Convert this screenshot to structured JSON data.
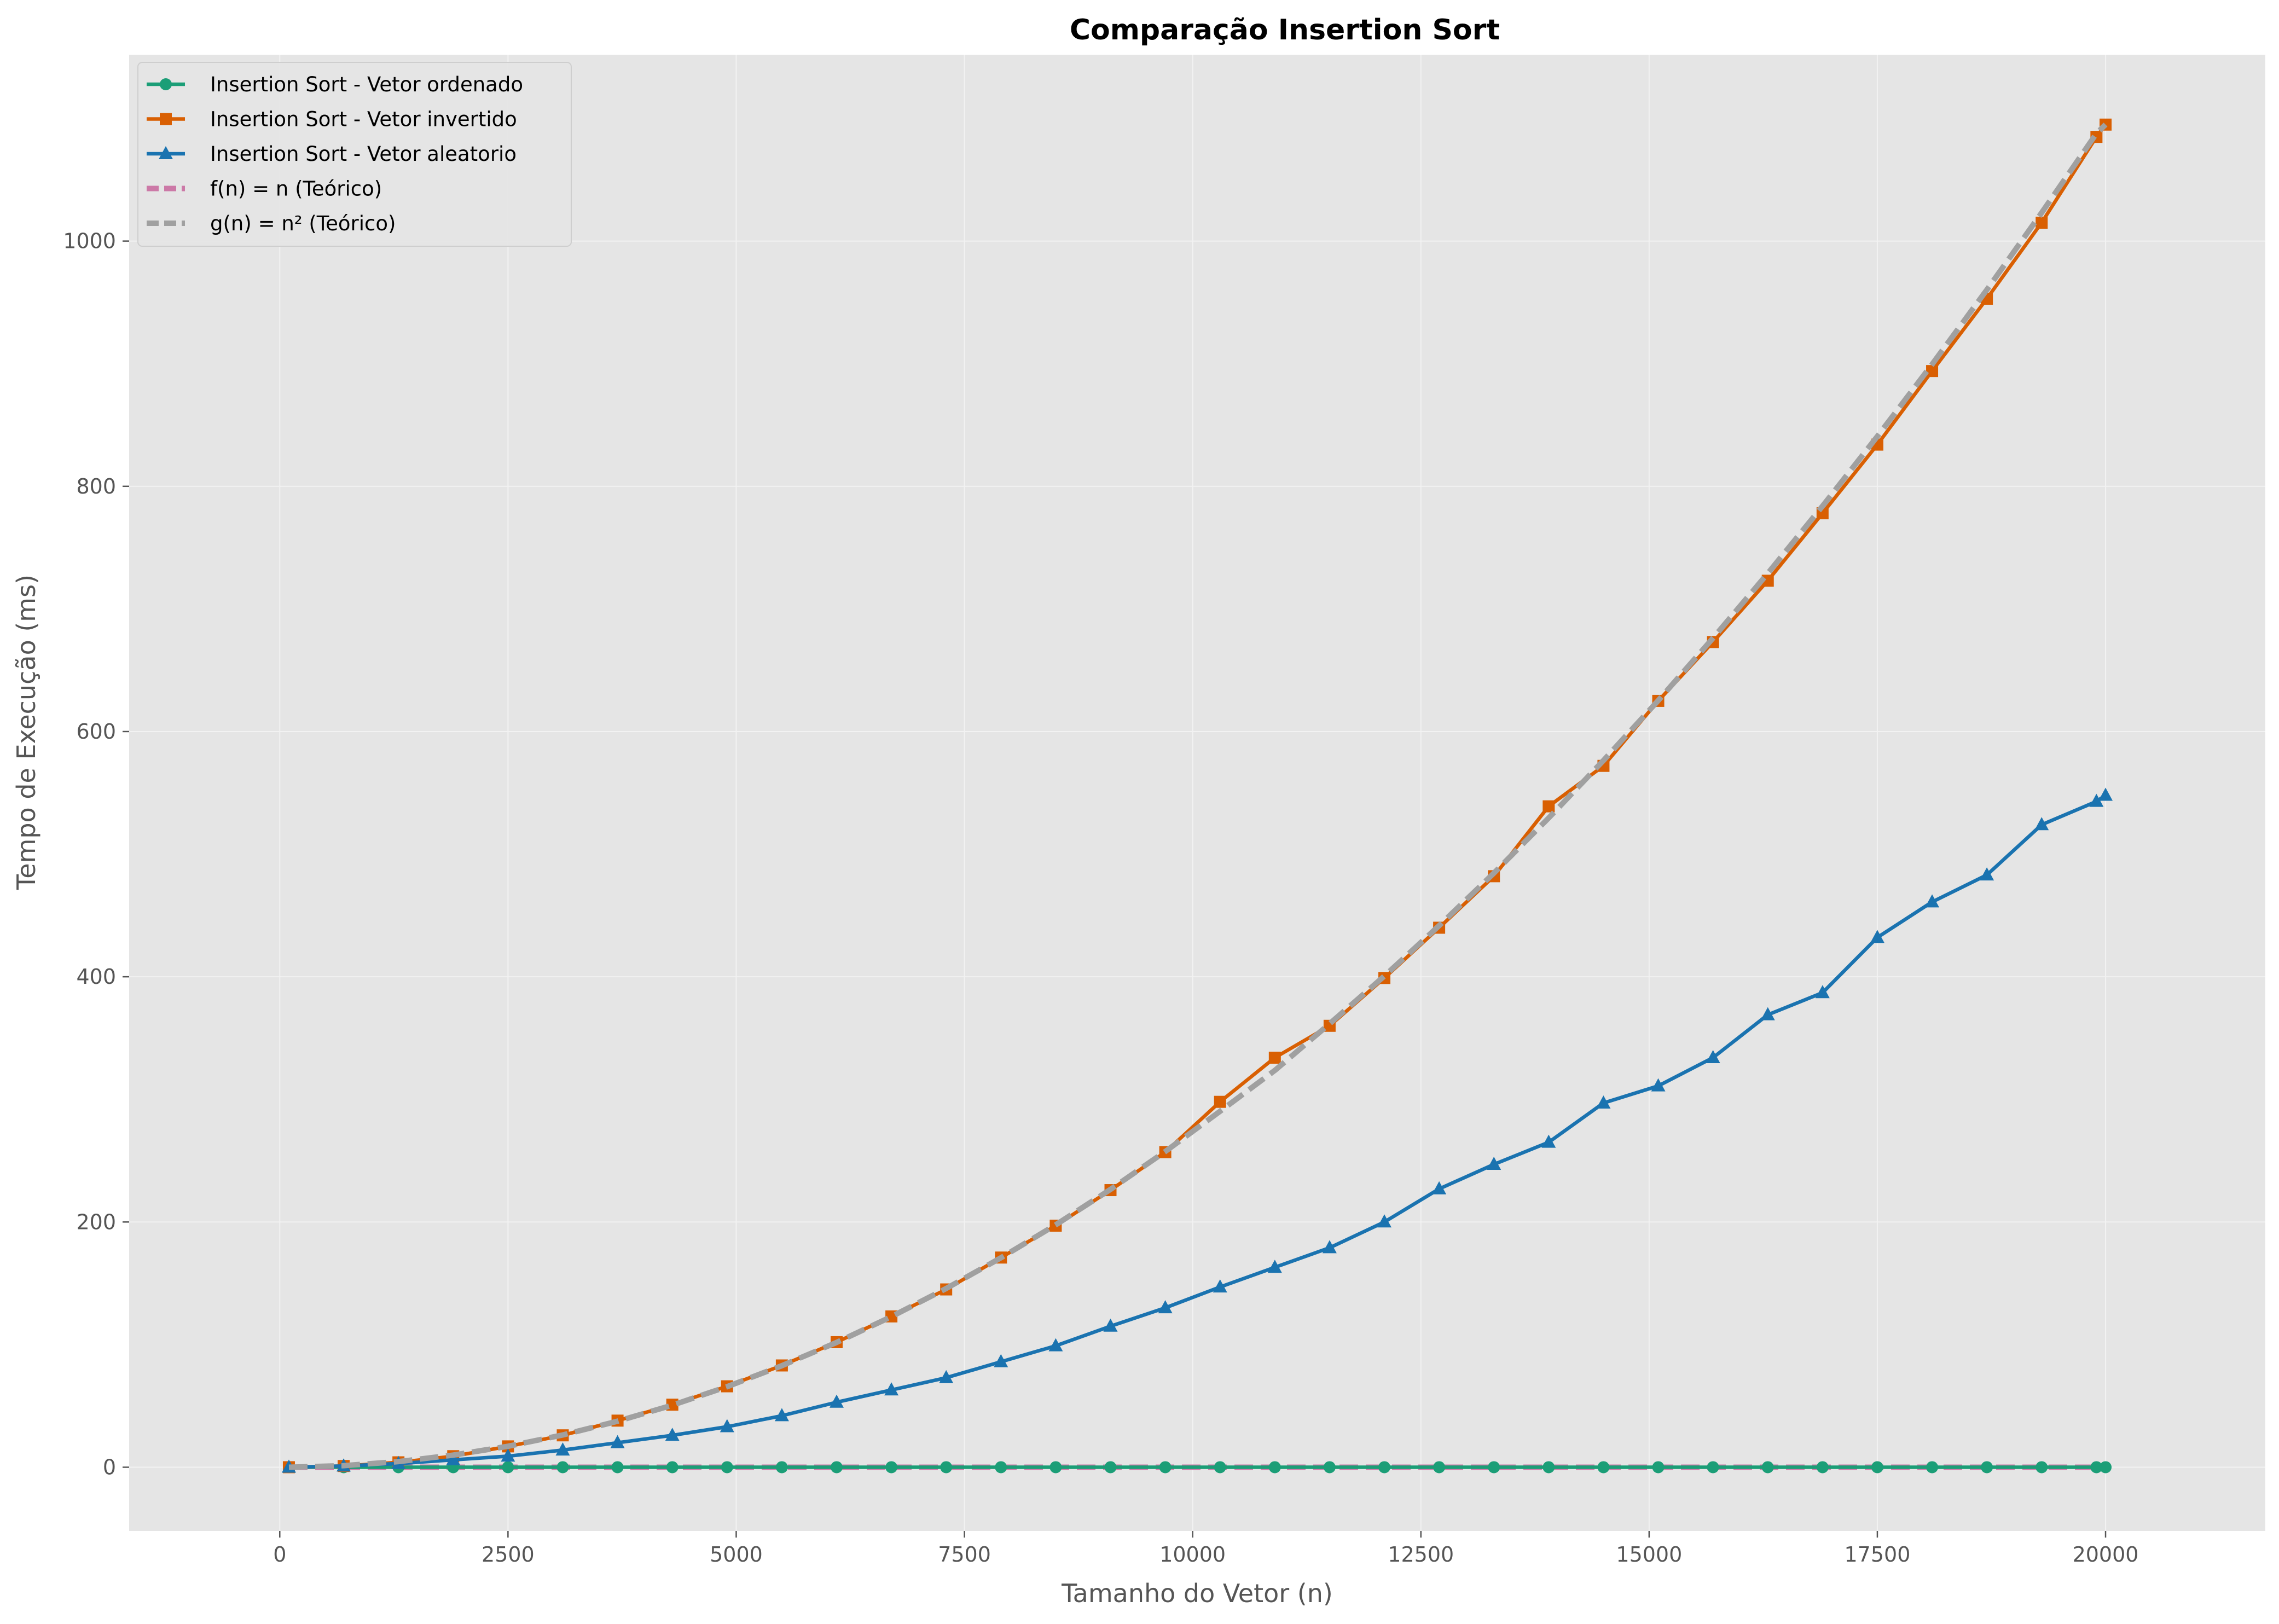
{
  "chart_data": {
    "type": "line",
    "title": "Comparação Insertion Sort",
    "xlabel": "Tamanho do Vetor (n)",
    "ylabel": "Tempo de Execução (ms)",
    "xlim": [
      -1650,
      21750
    ],
    "ylim": [
      -52,
      1152
    ],
    "xticks": [
      0,
      2500,
      5000,
      7500,
      10000,
      12500,
      15000,
      17500,
      20000
    ],
    "yticks": [
      0,
      200,
      400,
      600,
      800,
      1000
    ],
    "grid": true,
    "legend_position": "top-left",
    "x": [
      100,
      700,
      1300,
      1900,
      2500,
      3100,
      3700,
      4300,
      4900,
      5500,
      6100,
      6700,
      7300,
      7900,
      8500,
      9100,
      9700,
      10300,
      10900,
      11500,
      12100,
      12700,
      13300,
      13900,
      14500,
      15100,
      15700,
      16300,
      16900,
      17500,
      18100,
      18700,
      19300,
      19900,
      20000
    ],
    "series": [
      {
        "name": "Insertion Sort - Vetor ordenado",
        "color": "#1b9e77",
        "marker": "circle",
        "dashed": false,
        "values": [
          0,
          0,
          0,
          0,
          0,
          0,
          0,
          0,
          0,
          0,
          0,
          0,
          0,
          0,
          0,
          0,
          0,
          0,
          0,
          0,
          0,
          0,
          0,
          0,
          0,
          0,
          0,
          0,
          0,
          0,
          0,
          0,
          0,
          0,
          0
        ]
      },
      {
        "name": "Insertion Sort - Vetor invertido",
        "color": "#d95f02",
        "marker": "square",
        "dashed": false,
        "values": [
          0,
          1,
          4,
          9,
          17,
          26,
          38,
          51,
          66,
          83,
          102,
          123,
          145,
          171,
          197,
          226,
          257,
          298,
          334,
          360,
          399,
          440,
          482,
          539,
          572,
          625,
          673,
          723,
          778,
          834,
          894,
          953,
          1015,
          1085,
          1095
        ]
      },
      {
        "name": "Insertion Sort - Vetor aleatorio",
        "color": "#1a73b0",
        "marker": "triangle",
        "dashed": false,
        "values": [
          0,
          1,
          3,
          6,
          9,
          14,
          20,
          26,
          33,
          42,
          53,
          63,
          73,
          86,
          99,
          115,
          130,
          147,
          163,
          179,
          200,
          227,
          247,
          265,
          297,
          311,
          334,
          369,
          387,
          432,
          461,
          483,
          524,
          543,
          548
        ]
      },
      {
        "name": "f(n) = n (Teórico)",
        "color": "#cc79a7",
        "marker": "none",
        "dashed": true,
        "values": [
          0,
          0,
          0,
          0,
          0,
          0,
          0,
          0,
          0,
          0,
          0,
          0,
          0,
          0,
          0,
          0,
          0,
          0,
          0,
          0,
          0,
          0,
          0,
          0,
          0,
          0,
          0,
          0,
          0,
          0,
          0,
          0,
          0,
          0,
          0
        ]
      },
      {
        "name": "g(n) = n² (Teórico)",
        "color": "#a0a0a0",
        "marker": "none",
        "dashed": true,
        "values": [
          0.0,
          1.3,
          4.6,
          9.9,
          17.1,
          26.3,
          37.5,
          50.6,
          65.7,
          82.8,
          101.8,
          122.8,
          145.8,
          170.8,
          197.7,
          226.6,
          257.5,
          290.3,
          323.6,
          361.7,
          400.6,
          441.7,
          484.6,
          529.5,
          576.4,
          625.3,
          676.2,
          729.0,
          783.9,
          840.7,
          899.5,
          960.3,
          1023.1,
          1087.8,
          1095.0
        ]
      }
    ]
  }
}
